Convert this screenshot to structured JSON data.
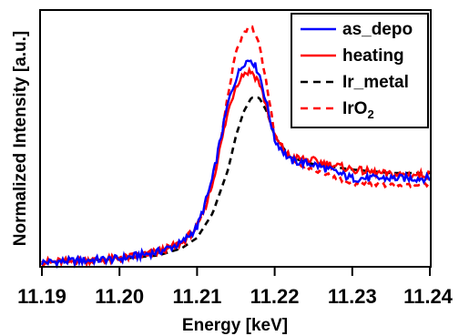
{
  "chart_data": {
    "type": "line",
    "title": "",
    "xlabel": "Energy [keV]",
    "ylabel": "Normalized Intensity [a.u.]",
    "xlim": [
      11.19,
      11.24
    ],
    "ylim": [
      0,
      1.45
    ],
    "x_ticks": [
      "11.19",
      "11.20",
      "11.21",
      "11.22",
      "11.23",
      "11.24"
    ],
    "y_ticks_shown": false,
    "grid": false,
    "legend_position": "top-right",
    "series": [
      {
        "name": "as_depo",
        "color": "#0000ff",
        "dash": "solid",
        "x": [
          11.19,
          11.195,
          11.2,
          11.205,
          11.208,
          11.21,
          11.211,
          11.212,
          11.213,
          11.214,
          11.215,
          11.216,
          11.217,
          11.218,
          11.219,
          11.22,
          11.222,
          11.225,
          11.23,
          11.235,
          11.24
        ],
        "y": [
          0.02,
          0.03,
          0.04,
          0.08,
          0.13,
          0.22,
          0.35,
          0.5,
          0.72,
          0.93,
          1.07,
          1.16,
          1.18,
          1.1,
          0.92,
          0.72,
          0.6,
          0.58,
          0.5,
          0.5,
          0.5
        ]
      },
      {
        "name": "heating",
        "color": "#ff0000",
        "dash": "solid",
        "x": [
          11.19,
          11.195,
          11.2,
          11.205,
          11.208,
          11.21,
          11.211,
          11.212,
          11.213,
          11.214,
          11.215,
          11.216,
          11.217,
          11.218,
          11.219,
          11.22,
          11.222,
          11.225,
          11.23,
          11.235,
          11.24
        ],
        "y": [
          0.02,
          0.03,
          0.04,
          0.08,
          0.13,
          0.22,
          0.33,
          0.47,
          0.68,
          0.88,
          1.03,
          1.1,
          1.11,
          1.05,
          0.9,
          0.73,
          0.62,
          0.6,
          0.55,
          0.52,
          0.52
        ]
      },
      {
        "name": "Ir_metal",
        "color": "#000000",
        "dash": "dashed",
        "x": [
          11.19,
          11.195,
          11.2,
          11.205,
          11.208,
          11.21,
          11.212,
          11.214,
          11.215,
          11.216,
          11.217,
          11.218,
          11.219,
          11.22,
          11.222,
          11.225,
          11.23,
          11.235,
          11.24
        ],
        "y": [
          0.02,
          0.03,
          0.04,
          0.06,
          0.1,
          0.16,
          0.3,
          0.55,
          0.74,
          0.88,
          0.96,
          0.96,
          0.88,
          0.74,
          0.62,
          0.58,
          0.55,
          0.53,
          0.53
        ]
      },
      {
        "name": "IrO2",
        "label_main": "IrO",
        "label_sub": "2",
        "color": "#ff0000",
        "dash": "dashed",
        "x": [
          11.19,
          11.195,
          11.2,
          11.205,
          11.208,
          11.21,
          11.211,
          11.212,
          11.213,
          11.214,
          11.215,
          11.216,
          11.217,
          11.218,
          11.219,
          11.22,
          11.222,
          11.225,
          11.23,
          11.235,
          11.24
        ],
        "y": [
          0.02,
          0.03,
          0.04,
          0.08,
          0.13,
          0.22,
          0.33,
          0.47,
          0.7,
          0.98,
          1.22,
          1.33,
          1.37,
          1.27,
          1.03,
          0.75,
          0.6,
          0.55,
          0.47,
          0.46,
          0.46
        ]
      }
    ]
  }
}
